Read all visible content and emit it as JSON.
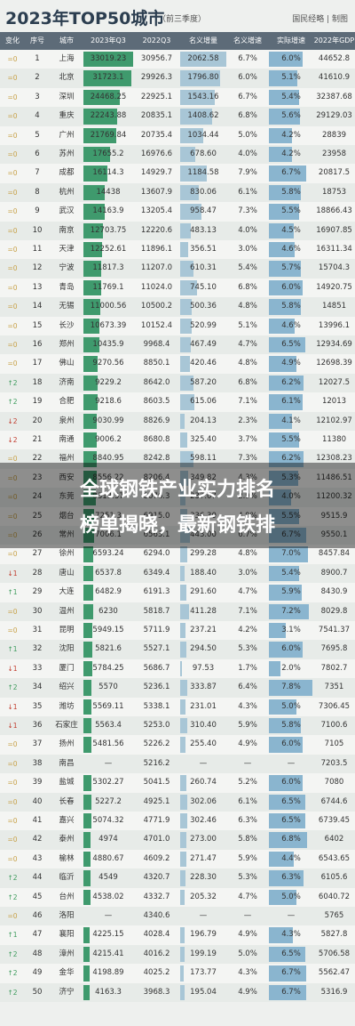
{
  "header": {
    "title": "2023年TOP50城市",
    "subtitle": "（前三季度）",
    "brand": "国民经略 | 制图"
  },
  "overlay": {
    "line1": "全球钢铁产业实力排名",
    "line2": "榜单揭晓，最新钢铁排"
  },
  "chart_data": {
    "type": "table",
    "columns": [
      "变化",
      "序号",
      "城市",
      "2023年Q3",
      "2022Q3",
      "名义增量",
      "名义增速",
      "实际增速",
      "2022年GDP"
    ],
    "bar_columns": [
      "2023年Q3",
      "名义增量",
      "实际增速"
    ],
    "rows": [
      [
        "=0",
        "1",
        "上海",
        "33019.23",
        "30956.7",
        "2062.58",
        "6.7%",
        "6.0%",
        "44652.8"
      ],
      [
        "=0",
        "2",
        "北京",
        "31723.1",
        "29926.3",
        "1796.80",
        "6.0%",
        "5.1%",
        "41610.9"
      ],
      [
        "=0",
        "3",
        "深圳",
        "24468.25",
        "22925.1",
        "1543.16",
        "6.7%",
        "5.4%",
        "32387.68"
      ],
      [
        "=0",
        "4",
        "重庆",
        "22243.88",
        "20835.1",
        "1408.62",
        "6.8%",
        "5.6%",
        "29129.03"
      ],
      [
        "=0",
        "5",
        "广州",
        "21769.84",
        "20735.4",
        "1034.44",
        "5.0%",
        "4.2%",
        "28839"
      ],
      [
        "=0",
        "6",
        "苏州",
        "17655.2",
        "16976.6",
        "678.60",
        "4.0%",
        "4.2%",
        "23958"
      ],
      [
        "=0",
        "7",
        "成都",
        "16114.3",
        "14929.7",
        "1184.58",
        "7.9%",
        "6.7%",
        "20817.5"
      ],
      [
        "=0",
        "8",
        "杭州",
        "14438",
        "13607.9",
        "830.06",
        "6.1%",
        "5.8%",
        "18753"
      ],
      [
        "=0",
        "9",
        "武汉",
        "14163.9",
        "13205.4",
        "958.47",
        "7.3%",
        "5.5%",
        "18866.43"
      ],
      [
        "=0",
        "10",
        "南京",
        "12703.75",
        "12220.6",
        "483.13",
        "4.0%",
        "4.5%",
        "16907.85"
      ],
      [
        "=0",
        "11",
        "天津",
        "12252.61",
        "11896.1",
        "356.51",
        "3.0%",
        "4.6%",
        "16311.34"
      ],
      [
        "=0",
        "12",
        "宁波",
        "11817.3",
        "11207.0",
        "610.31",
        "5.4%",
        "5.7%",
        "15704.3"
      ],
      [
        "=0",
        "13",
        "青岛",
        "11769.1",
        "11024.0",
        "745.10",
        "6.8%",
        "6.0%",
        "14920.75"
      ],
      [
        "=0",
        "14",
        "无锡",
        "11000.56",
        "10500.2",
        "500.36",
        "4.8%",
        "5.8%",
        "14851"
      ],
      [
        "=0",
        "15",
        "长沙",
        "10673.39",
        "10152.4",
        "520.99",
        "5.1%",
        "4.6%",
        "13996.1"
      ],
      [
        "=0",
        "16",
        "郑州",
        "10435.9",
        "9968.4",
        "467.49",
        "4.7%",
        "6.5%",
        "12934.69"
      ],
      [
        "=0",
        "17",
        "佛山",
        "9270.56",
        "8850.1",
        "420.46",
        "4.8%",
        "4.9%",
        "12698.39"
      ],
      [
        "↑2",
        "18",
        "济南",
        "9229.2",
        "8642.0",
        "587.20",
        "6.8%",
        "6.2%",
        "12027.5"
      ],
      [
        "↑2",
        "19",
        "合肥",
        "9218.6",
        "8603.5",
        "615.06",
        "7.1%",
        "6.1%",
        "12013"
      ],
      [
        "↓2",
        "20",
        "泉州",
        "9030.99",
        "8826.9",
        "204.13",
        "2.3%",
        "4.1%",
        "12102.97"
      ],
      [
        "↓2",
        "21",
        "南通",
        "9006.2",
        "8680.8",
        "325.40",
        "3.7%",
        "5.5%",
        "11380"
      ],
      [
        "=0",
        "22",
        "福州",
        "8840.95",
        "8242.8",
        "598.11",
        "7.3%",
        "6.2%",
        "12308.23"
      ],
      [
        "=0",
        "23",
        "西安",
        "8556.22",
        "8206.4",
        "349.82",
        "4.3%",
        "5.3%",
        "11486.51"
      ],
      [
        "=0",
        "24",
        "东莞",
        "8313.37",
        "8076.3",
        "237.07",
        "2.9%",
        "4.0%",
        "11200.32"
      ],
      [
        "=0",
        "25",
        "烟台",
        "7251.3",
        "6915.0",
        "336.30",
        "4.9%",
        "5.5%",
        "9515.9"
      ],
      [
        "=0",
        "26",
        "常州",
        "7006.1",
        "6563.1",
        "443.00",
        "6.7%",
        "6.7%",
        "9550.1"
      ],
      [
        "=0",
        "27",
        "徐州",
        "6593.24",
        "6294.0",
        "299.28",
        "4.8%",
        "7.0%",
        "8457.84"
      ],
      [
        "↓1",
        "28",
        "唐山",
        "6537.8",
        "6349.4",
        "188.40",
        "3.0%",
        "5.4%",
        "8900.7"
      ],
      [
        "↑1",
        "29",
        "大连",
        "6482.9",
        "6191.3",
        "291.60",
        "4.7%",
        "5.9%",
        "8430.9"
      ],
      [
        "=0",
        "30",
        "温州",
        "6230",
        "5818.7",
        "411.28",
        "7.1%",
        "7.2%",
        "8029.8"
      ],
      [
        "=0",
        "31",
        "昆明",
        "5949.15",
        "5711.9",
        "237.21",
        "4.2%",
        "3.1%",
        "7541.37"
      ],
      [
        "↑1",
        "32",
        "沈阳",
        "5821.6",
        "5527.1",
        "294.50",
        "5.3%",
        "6.0%",
        "7695.8"
      ],
      [
        "↓1",
        "33",
        "厦门",
        "5784.25",
        "5686.7",
        "97.53",
        "1.7%",
        "2.0%",
        "7802.7"
      ],
      [
        "↑2",
        "34",
        "绍兴",
        "5570",
        "5236.1",
        "333.87",
        "6.4%",
        "7.8%",
        "7351"
      ],
      [
        "↓1",
        "35",
        "潍坊",
        "5569.11",
        "5338.1",
        "231.01",
        "4.3%",
        "5.0%",
        "7306.45"
      ],
      [
        "↓1",
        "36",
        "石家庄",
        "5563.4",
        "5253.0",
        "310.40",
        "5.9%",
        "5.8%",
        "7100.6"
      ],
      [
        "=0",
        "37",
        "扬州",
        "5481.56",
        "5226.2",
        "255.40",
        "4.9%",
        "6.0%",
        "7105"
      ],
      [
        "=0",
        "38",
        "南昌",
        "—",
        "5216.2",
        "—",
        "—",
        "—",
        "7203.5"
      ],
      [
        "=0",
        "39",
        "盐城",
        "5302.27",
        "5041.5",
        "260.74",
        "5.2%",
        "6.0%",
        "7080"
      ],
      [
        "=0",
        "40",
        "长春",
        "5227.2",
        "4925.1",
        "302.06",
        "6.1%",
        "6.5%",
        "6744.6"
      ],
      [
        "=0",
        "41",
        "嘉兴",
        "5074.32",
        "4771.9",
        "302.46",
        "6.3%",
        "6.5%",
        "6739.45"
      ],
      [
        "=0",
        "42",
        "泰州",
        "4974",
        "4701.0",
        "273.00",
        "5.8%",
        "6.8%",
        "6402"
      ],
      [
        "=0",
        "43",
        "榆林",
        "4880.67",
        "4609.2",
        "271.47",
        "5.9%",
        "4.4%",
        "6543.65"
      ],
      [
        "↑2",
        "44",
        "临沂",
        "4549",
        "4320.7",
        "228.30",
        "5.3%",
        "6.3%",
        "6105.6"
      ],
      [
        "↑2",
        "45",
        "台州",
        "4538.02",
        "4332.7",
        "205.32",
        "4.7%",
        "5.0%",
        "6040.72"
      ],
      [
        "=0",
        "46",
        "洛阳",
        "—",
        "4340.6",
        "—",
        "—",
        "—",
        "5765"
      ],
      [
        "↑1",
        "47",
        "襄阳",
        "4225.15",
        "4028.4",
        "196.79",
        "4.9%",
        "4.3%",
        "5827.8"
      ],
      [
        "↑2",
        "48",
        "漳州",
        "4215.41",
        "4016.2",
        "199.19",
        "5.0%",
        "6.5%",
        "5706.58"
      ],
      [
        "↑2",
        "49",
        "金华",
        "4198.89",
        "4025.2",
        "173.77",
        "4.3%",
        "6.7%",
        "5562.47"
      ],
      [
        "↑2",
        "50",
        "济宁",
        "4163.3",
        "3968.3",
        "195.04",
        "4.9%",
        "6.7%",
        "5316.9"
      ]
    ]
  }
}
